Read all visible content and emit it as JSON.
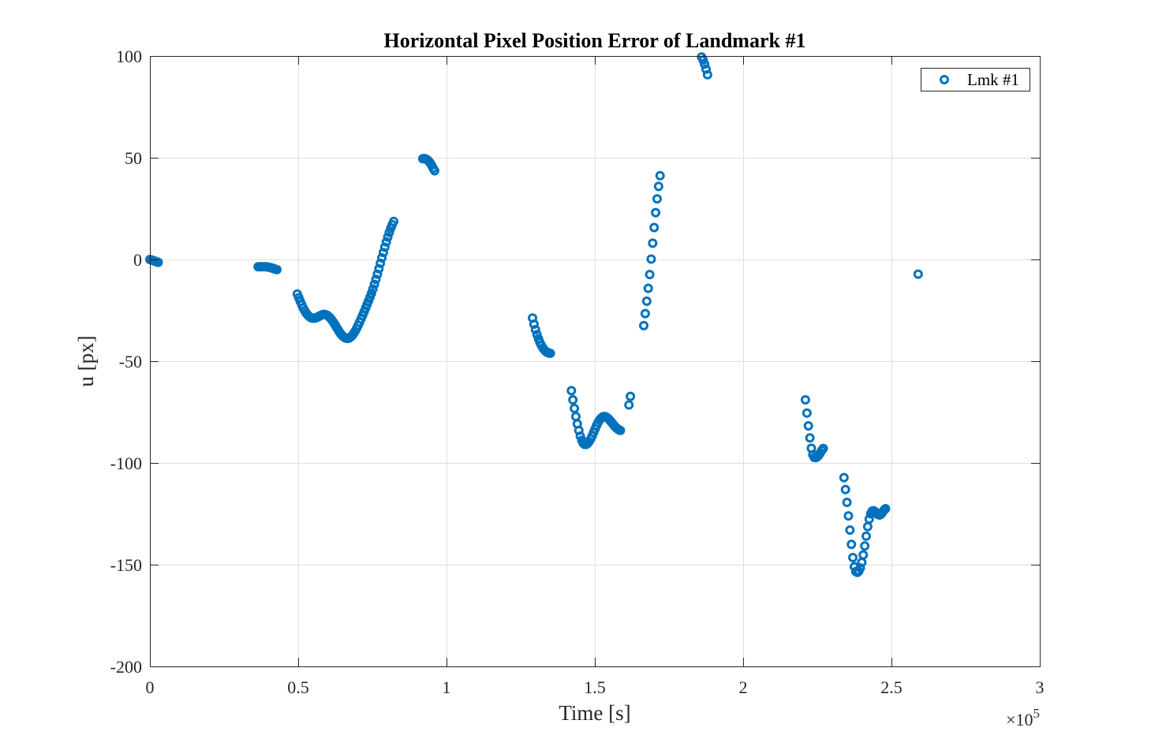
{
  "chart_data": {
    "type": "scatter",
    "title": "Horizontal Pixel Position Error of Landmark #1",
    "xlabel": "Time [s]",
    "ylabel": "u [px]",
    "x_exponent_label": "×10",
    "x_exponent_power": "5",
    "xlim": [
      0,
      3
    ],
    "ylim": [
      -200,
      100
    ],
    "x_ticks": [
      0,
      0.5,
      1,
      1.5,
      2,
      2.5,
      3
    ],
    "x_tick_labels": [
      "0",
      "0.5",
      "1",
      "1.5",
      "2",
      "2.5",
      "3"
    ],
    "y_ticks": [
      -200,
      -150,
      -100,
      -50,
      0,
      50,
      100
    ],
    "y_tick_labels": [
      "-200",
      "-150",
      "-100",
      "-50",
      "0",
      "50",
      "100"
    ],
    "grid": true,
    "legend_position": "top-right",
    "marker": "circle-open",
    "color": "#0072BD",
    "series": [
      {
        "name": "Lmk #1",
        "points": [
          [
            0.0,
            0.0
          ],
          [
            0.004,
            -0.2
          ],
          [
            0.008,
            -0.4
          ],
          [
            0.012,
            -0.6
          ],
          [
            0.016,
            -0.8
          ],
          [
            0.02,
            -1.0
          ],
          [
            0.024,
            -1.2
          ],
          [
            0.028,
            -1.4
          ],
          [
            0.365,
            -3.6
          ],
          [
            0.372,
            -3.6
          ],
          [
            0.379,
            -3.6
          ],
          [
            0.386,
            -3.6
          ],
          [
            0.393,
            -3.6
          ],
          [
            0.4,
            -3.8
          ],
          [
            0.407,
            -4.0
          ],
          [
            0.414,
            -4.3
          ],
          [
            0.421,
            -4.7
          ],
          [
            0.428,
            -5.0
          ],
          [
            0.497,
            -17.0
          ],
          [
            0.502,
            -18.8
          ],
          [
            0.507,
            -20.6
          ],
          [
            0.512,
            -22.3
          ],
          [
            0.517,
            -23.9
          ],
          [
            0.522,
            -25.2
          ],
          [
            0.527,
            -26.4
          ],
          [
            0.532,
            -27.3
          ],
          [
            0.537,
            -28.0
          ],
          [
            0.542,
            -28.5
          ],
          [
            0.547,
            -28.8
          ],
          [
            0.552,
            -28.9
          ],
          [
            0.557,
            -28.8
          ],
          [
            0.562,
            -28.6
          ],
          [
            0.567,
            -28.2
          ],
          [
            0.572,
            -27.8
          ],
          [
            0.577,
            -27.4
          ],
          [
            0.582,
            -27.1
          ],
          [
            0.587,
            -27.0
          ],
          [
            0.592,
            -27.1
          ],
          [
            0.597,
            -27.4
          ],
          [
            0.602,
            -27.9
          ],
          [
            0.607,
            -28.6
          ],
          [
            0.612,
            -29.5
          ],
          [
            0.617,
            -30.5
          ],
          [
            0.622,
            -31.6
          ],
          [
            0.627,
            -32.8
          ],
          [
            0.632,
            -34.0
          ],
          [
            0.637,
            -35.2
          ],
          [
            0.642,
            -36.3
          ],
          [
            0.647,
            -37.2
          ],
          [
            0.652,
            -37.9
          ],
          [
            0.657,
            -38.4
          ],
          [
            0.662,
            -38.7
          ],
          [
            0.667,
            -38.8
          ],
          [
            0.672,
            -38.6
          ],
          [
            0.677,
            -38.1
          ],
          [
            0.682,
            -37.4
          ],
          [
            0.687,
            -36.4
          ],
          [
            0.692,
            -35.2
          ],
          [
            0.697,
            -33.9
          ],
          [
            0.702,
            -32.4
          ],
          [
            0.707,
            -30.8
          ],
          [
            0.712,
            -29.2
          ],
          [
            0.717,
            -27.5
          ],
          [
            0.722,
            -25.8
          ],
          [
            0.727,
            -24.0
          ],
          [
            0.732,
            -22.2
          ],
          [
            0.737,
            -20.4
          ],
          [
            0.742,
            -18.5
          ],
          [
            0.747,
            -16.6
          ],
          [
            0.752,
            -14.5
          ],
          [
            0.757,
            -12.2
          ],
          [
            0.762,
            -9.8
          ],
          [
            0.767,
            -7.2
          ],
          [
            0.772,
            -4.6
          ],
          [
            0.777,
            -1.9
          ],
          [
            0.782,
            0.8
          ],
          [
            0.787,
            3.4
          ],
          [
            0.792,
            6.0
          ],
          [
            0.797,
            8.6
          ],
          [
            0.802,
            11.0
          ],
          [
            0.807,
            13.3
          ],
          [
            0.812,
            15.3
          ],
          [
            0.817,
            17.1
          ],
          [
            0.822,
            18.7
          ],
          [
            0.92,
            49.5
          ],
          [
            0.925,
            49.6
          ],
          [
            0.93,
            49.4
          ],
          [
            0.935,
            49.0
          ],
          [
            0.94,
            48.3
          ],
          [
            0.945,
            47.4
          ],
          [
            0.95,
            46.2
          ],
          [
            0.955,
            44.8
          ],
          [
            0.96,
            43.6
          ],
          [
            1.29,
            -28.8
          ],
          [
            1.295,
            -31.8
          ],
          [
            1.3,
            -34.5
          ],
          [
            1.305,
            -36.9
          ],
          [
            1.31,
            -39.0
          ],
          [
            1.315,
            -40.8
          ],
          [
            1.32,
            -42.3
          ],
          [
            1.325,
            -43.5
          ],
          [
            1.33,
            -44.5
          ],
          [
            1.335,
            -45.2
          ],
          [
            1.34,
            -45.7
          ],
          [
            1.345,
            -46.0
          ],
          [
            1.35,
            -46.1
          ],
          [
            1.421,
            -64.5
          ],
          [
            1.426,
            -69.0
          ],
          [
            1.431,
            -73.2
          ],
          [
            1.436,
            -77.2
          ],
          [
            1.441,
            -80.8
          ],
          [
            1.446,
            -84.0
          ],
          [
            1.451,
            -86.8
          ],
          [
            1.456,
            -88.9
          ],
          [
            1.461,
            -90.3
          ],
          [
            1.466,
            -90.9
          ],
          [
            1.471,
            -90.9
          ],
          [
            1.476,
            -90.4
          ],
          [
            1.481,
            -89.5
          ],
          [
            1.486,
            -88.2
          ],
          [
            1.491,
            -86.7
          ],
          [
            1.496,
            -85.0
          ],
          [
            1.501,
            -83.3
          ],
          [
            1.506,
            -81.6
          ],
          [
            1.511,
            -80.1
          ],
          [
            1.516,
            -78.9
          ],
          [
            1.521,
            -78.0
          ],
          [
            1.526,
            -77.4
          ],
          [
            1.531,
            -77.2
          ],
          [
            1.536,
            -77.3
          ],
          [
            1.541,
            -77.7
          ],
          [
            1.546,
            -78.3
          ],
          [
            1.551,
            -79.1
          ],
          [
            1.556,
            -80.0
          ],
          [
            1.561,
            -80.9
          ],
          [
            1.566,
            -81.8
          ],
          [
            1.571,
            -82.6
          ],
          [
            1.576,
            -83.2
          ],
          [
            1.581,
            -83.7
          ],
          [
            1.586,
            -84.0
          ],
          [
            1.615,
            -71.5
          ],
          [
            1.62,
            -67.3
          ],
          [
            1.665,
            -32.5
          ],
          [
            1.67,
            -26.6
          ],
          [
            1.675,
            -20.5
          ],
          [
            1.68,
            -14.2
          ],
          [
            1.685,
            -7.4
          ],
          [
            1.69,
            0.2
          ],
          [
            1.695,
            8.0
          ],
          [
            1.7,
            15.7
          ],
          [
            1.705,
            23.0
          ],
          [
            1.71,
            29.8
          ],
          [
            1.715,
            35.9
          ],
          [
            1.72,
            41.2
          ],
          [
            1.86,
            99.5
          ],
          [
            1.865,
            98.0
          ],
          [
            1.87,
            96.0
          ],
          [
            1.875,
            93.5
          ],
          [
            1.88,
            90.8
          ],
          [
            2.21,
            -69.0
          ],
          [
            2.215,
            -75.5
          ],
          [
            2.22,
            -81.8
          ],
          [
            2.225,
            -87.7
          ],
          [
            2.23,
            -92.8
          ],
          [
            2.235,
            -96.0
          ],
          [
            2.24,
            -97.3
          ],
          [
            2.245,
            -97.4
          ],
          [
            2.25,
            -97.0
          ],
          [
            2.255,
            -96.2
          ],
          [
            2.26,
            -95.1
          ],
          [
            2.265,
            -93.9
          ],
          [
            2.27,
            -92.9
          ],
          [
            2.34,
            -107.2
          ],
          [
            2.345,
            -113.1
          ],
          [
            2.35,
            -119.4
          ],
          [
            2.355,
            -126.0
          ],
          [
            2.36,
            -133.0
          ],
          [
            2.365,
            -140.0
          ],
          [
            2.37,
            -146.5
          ],
          [
            2.375,
            -151.0
          ],
          [
            2.38,
            -153.4
          ],
          [
            2.385,
            -153.8
          ],
          [
            2.39,
            -153.2
          ],
          [
            2.395,
            -151.6
          ],
          [
            2.4,
            -148.9
          ],
          [
            2.405,
            -145.2
          ],
          [
            2.41,
            -140.8
          ],
          [
            2.415,
            -136.0
          ],
          [
            2.42,
            -131.3
          ],
          [
            2.425,
            -127.6
          ],
          [
            2.43,
            -125.0
          ],
          [
            2.435,
            -123.7
          ],
          [
            2.44,
            -123.5
          ],
          [
            2.445,
            -124.0
          ],
          [
            2.45,
            -124.8
          ],
          [
            2.455,
            -125.4
          ],
          [
            2.46,
            -125.6
          ],
          [
            2.465,
            -125.2
          ],
          [
            2.47,
            -124.2
          ],
          [
            2.475,
            -123.2
          ],
          [
            2.48,
            -122.5
          ],
          [
            2.59,
            -7.2
          ]
        ]
      }
    ]
  }
}
